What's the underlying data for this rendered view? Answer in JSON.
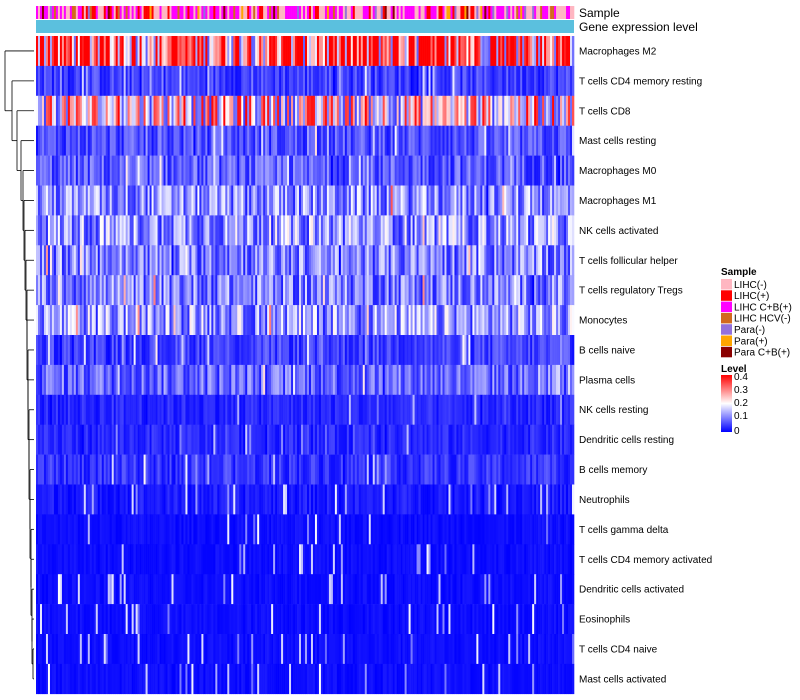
{
  "chart_data": {
    "type": "heatmap",
    "title": "",
    "annotation_tracks": [
      {
        "name": "Sample"
      },
      {
        "name": "Gene expression level",
        "color": "#5bc0de"
      }
    ],
    "rows": [
      {
        "label": "Macrophages M2",
        "mean": 0.33
      },
      {
        "label": "T cells CD4 memory resting",
        "mean": 0.05
      },
      {
        "label": "T cells CD8",
        "mean": 0.22
      },
      {
        "label": "Mast cells resting",
        "mean": 0.06
      },
      {
        "label": "Macrophages M0",
        "mean": 0.07
      },
      {
        "label": "Macrophages M1",
        "mean": 0.11
      },
      {
        "label": "NK cells activated",
        "mean": 0.12
      },
      {
        "label": "T cells follicular helper",
        "mean": 0.1
      },
      {
        "label": "T cells regulatory  Tregs",
        "mean": 0.1
      },
      {
        "label": "Monocytes",
        "mean": 0.12
      },
      {
        "label": "B cells naive",
        "mean": 0.05
      },
      {
        "label": "Plasma cells",
        "mean": 0.08
      },
      {
        "label": "NK cells resting",
        "mean": 0.03
      },
      {
        "label": "Dendritic cells resting",
        "mean": 0.03
      },
      {
        "label": "B cells memory",
        "mean": 0.04
      },
      {
        "label": "Neutrophils",
        "mean": 0.02
      },
      {
        "label": "T cells gamma delta",
        "mean": 0.01
      },
      {
        "label": "T cells CD4 memory activated",
        "mean": 0.01
      },
      {
        "label": "Dendritic cells activated",
        "mean": 0.01
      },
      {
        "label": "Eosinophils",
        "mean": 0.01
      },
      {
        "label": "T cells CD4 naive",
        "mean": 0.01
      },
      {
        "label": "Mast cells activated",
        "mean": 0.01
      }
    ],
    "n_columns": 270,
    "legend_sample": {
      "title": "Sample",
      "items": [
        {
          "label": "LIHC(-)",
          "color": "#ffb6c1"
        },
        {
          "label": "LIHC(+)",
          "color": "#ff0000"
        },
        {
          "label": "LIHC C+B(+)",
          "color": "#ff00ff"
        },
        {
          "label": "LIHC HCV(-)",
          "color": "#d2691e"
        },
        {
          "label": "Para(-)",
          "color": "#9370db"
        },
        {
          "label": "Para(+)",
          "color": "#ffa500"
        },
        {
          "label": "Para C+B(+)",
          "color": "#8b0000"
        }
      ]
    },
    "legend_level": {
      "title": "Level",
      "range": [
        0,
        0.4
      ],
      "ticks": [
        "0.4",
        "0.3",
        "0.2",
        "0.1",
        "0"
      ],
      "colors": [
        "#0000ff",
        "#ffffff",
        "#ff0000"
      ]
    }
  }
}
